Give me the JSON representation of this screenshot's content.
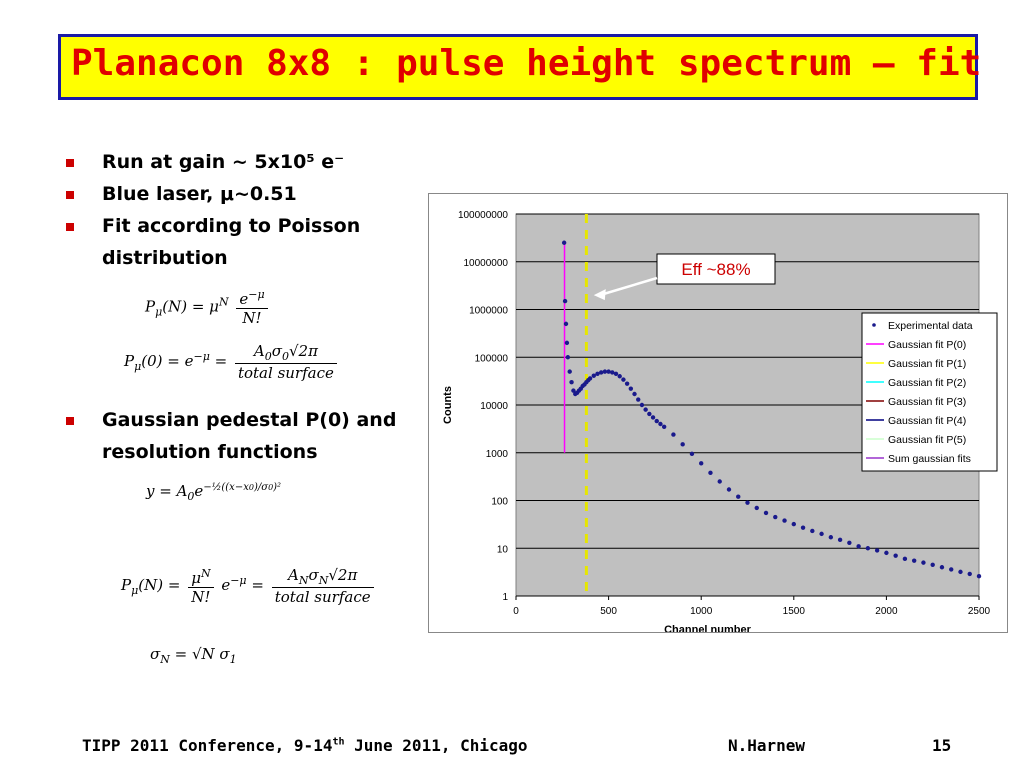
{
  "slide": {
    "title": "Planacon 8x8 : pulse height spectrum – fit",
    "bullets": [
      {
        "text": "Run at gain ~ 5x10⁵ e⁻"
      },
      {
        "text": "Blue laser,  μ~0.51"
      },
      {
        "text": "Fit according to Poisson distribution"
      },
      {
        "text": "Gaussian pedestal P(0) and resolution functions"
      }
    ],
    "equations": {
      "poisson": "Pμ(N) = μ^N e^−μ / N!",
      "p0": "Pμ(0) = e^−μ = A0 σ0 √2π / total surface",
      "gauss": "y = A0 e^(−½((x−x0)/σ0)²)",
      "pn": "Pμ(N) = μ^N/N! e^−μ = AN σN √2π / total surface",
      "sigma": "σN = √N σ1"
    },
    "footer": {
      "conference": "TIPP 2011 Conference, 9-14",
      "conference_sup": "th",
      "conference_rest": " June 2011, Chicago",
      "author": "N.Harnew",
      "page": "15"
    },
    "colors": {
      "title_bg": "#ffff00",
      "title_border": "#1a1aa6",
      "title_text": "#e00000",
      "bullet": "#cc0000"
    }
  },
  "chart_data": {
    "type": "scatter",
    "xlabel": "Channel number",
    "ylabel": "Counts",
    "xlim": [
      0,
      2500
    ],
    "ylim": [
      1,
      100000000
    ],
    "yscale": "log",
    "x_ticks": [
      "0",
      "500",
      "1000",
      "1500",
      "2000",
      "2500"
    ],
    "y_ticks": [
      "1",
      "10",
      "100",
      "1000",
      "10000",
      "100000",
      "1000000",
      "10000000",
      "100000000"
    ],
    "grid": true,
    "background": "#c0c0c0",
    "annotation": {
      "text": "Eff ~88%",
      "text_color": "#cc0000",
      "arrow_to": {
        "x": 420,
        "y": 2000000
      }
    },
    "cut_line": {
      "x": 380,
      "color": "#e6e600",
      "style": "dashed"
    },
    "legend_position": "right",
    "series": [
      {
        "name": "Experimental data",
        "color": "#1a1a8c",
        "marker": "dot",
        "x": [
          260,
          265,
          270,
          275,
          280,
          290,
          300,
          310,
          320,
          330,
          340,
          350,
          360,
          370,
          380,
          390,
          400,
          420,
          440,
          460,
          480,
          500,
          520,
          540,
          560,
          580,
          600,
          620,
          640,
          660,
          680,
          700,
          720,
          740,
          760,
          780,
          800,
          850,
          900,
          950,
          1000,
          1050,
          1100,
          1150,
          1200,
          1250,
          1300,
          1350,
          1400,
          1450,
          1500,
          1550,
          1600,
          1650,
          1700,
          1750,
          1800,
          1850,
          1900,
          1950,
          2000,
          2050,
          2100,
          2150,
          2200,
          2250,
          2300,
          2350,
          2400,
          2450,
          2500
        ],
        "y": [
          25000000,
          1500000,
          500000,
          200000,
          100000,
          50000,
          30000,
          20000,
          17000,
          18000,
          20000,
          22000,
          25000,
          27000,
          30000,
          33000,
          36000,
          41000,
          45000,
          48000,
          50000,
          50000,
          48000,
          45000,
          40000,
          34000,
          28000,
          22000,
          17000,
          13000,
          10000,
          8000,
          6500,
          5500,
          4600,
          4000,
          3500,
          2400,
          1500,
          950,
          600,
          380,
          250,
          170,
          120,
          90,
          70,
          55,
          45,
          38,
          32,
          27,
          23,
          20,
          17,
          15,
          13,
          11,
          10,
          9,
          8,
          7,
          6,
          5.5,
          5,
          4.5,
          4,
          3.6,
          3.2,
          2.9,
          2.6
        ]
      },
      {
        "name": "Gaussian fit P(0)",
        "color": "#ff00ff",
        "x": [
          262,
          262
        ],
        "y": [
          1000,
          25000000
        ]
      },
      {
        "name": "Gaussian fit P(1)",
        "color": "#ffff00",
        "x": [],
        "y": []
      },
      {
        "name": "Gaussian fit P(2)",
        "color": "#00ffff",
        "x": [],
        "y": []
      },
      {
        "name": "Gaussian fit P(3)",
        "color": "#800000",
        "x": [],
        "y": []
      },
      {
        "name": "Gaussian fit P(4)",
        "color": "#000080",
        "x": [],
        "y": []
      },
      {
        "name": "Gaussian fit P(5)",
        "color": "#ccffcc",
        "x": [],
        "y": []
      },
      {
        "name": "Sum gaussian fits",
        "color": "#9933cc",
        "x": [],
        "y": []
      }
    ]
  }
}
